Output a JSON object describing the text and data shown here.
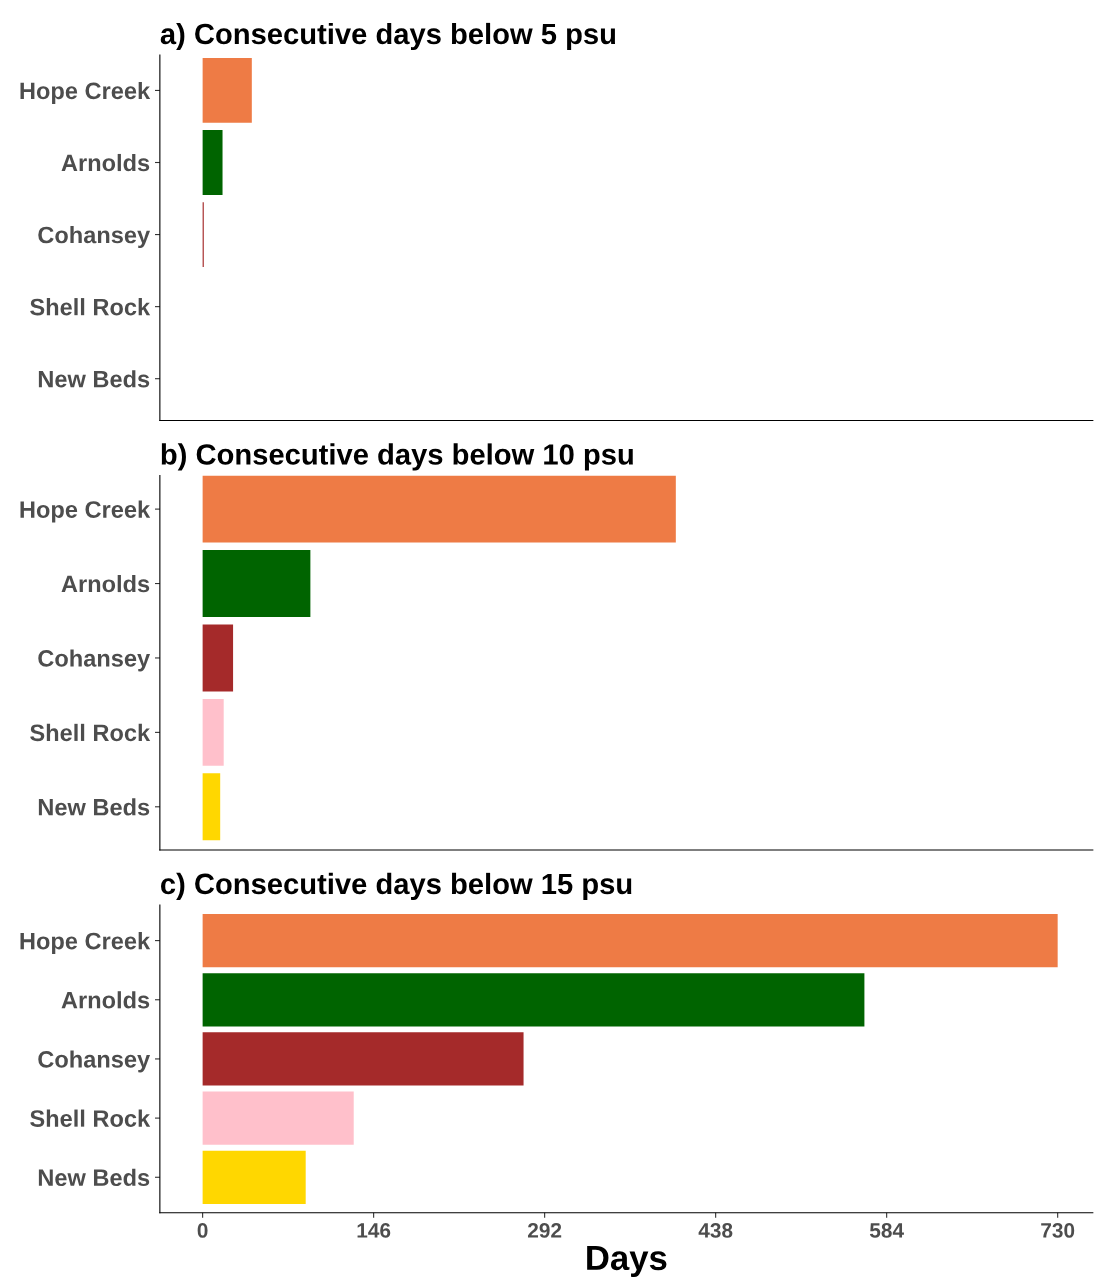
{
  "chart_data": [
    {
      "type": "bar",
      "orientation": "horizontal",
      "title": "a) Consecutive days below 5 psu",
      "categories": [
        "Hope Creek",
        "Arnolds",
        "Cohansey",
        "Shell Rock",
        "New Beds"
      ],
      "values": [
        42,
        17,
        1,
        0,
        0
      ],
      "colors": [
        "#ee7b45",
        "#006400",
        "#a52a2a",
        "#ffc0cb",
        "#ffd700"
      ],
      "xlim": [
        -36.5,
        760
      ],
      "xticks": [
        0,
        146,
        292,
        438,
        584,
        730
      ],
      "tick_labels": "y",
      "grid": false
    },
    {
      "type": "bar",
      "orientation": "horizontal",
      "title": "b) Consecutive days below 10 psu",
      "categories": [
        "Hope Creek",
        "Arnolds",
        "Cohansey",
        "Shell Rock",
        "New Beds"
      ],
      "values": [
        404,
        92,
        26,
        18,
        15
      ],
      "colors": [
        "#ee7b45",
        "#006400",
        "#a52a2a",
        "#ffc0cb",
        "#ffd700"
      ],
      "xlim": [
        -36.5,
        760
      ],
      "xticks": [
        0,
        146,
        292,
        438,
        584,
        730
      ],
      "tick_labels": "y",
      "grid": false
    },
    {
      "type": "bar",
      "orientation": "horizontal",
      "title": "c) Consecutive days below 15 psu",
      "xlabel": "Days",
      "categories": [
        "Hope Creek",
        "Arnolds",
        "Cohansey",
        "Shell Rock",
        "New Beds"
      ],
      "values": [
        730,
        565,
        274,
        129,
        88
      ],
      "colors": [
        "#ee7b45",
        "#006400",
        "#a52a2a",
        "#ffc0cb",
        "#ffd700"
      ],
      "xlim": [
        -36.5,
        760
      ],
      "xticks": [
        0,
        146,
        292,
        438,
        584,
        730
      ],
      "grid": false
    }
  ]
}
